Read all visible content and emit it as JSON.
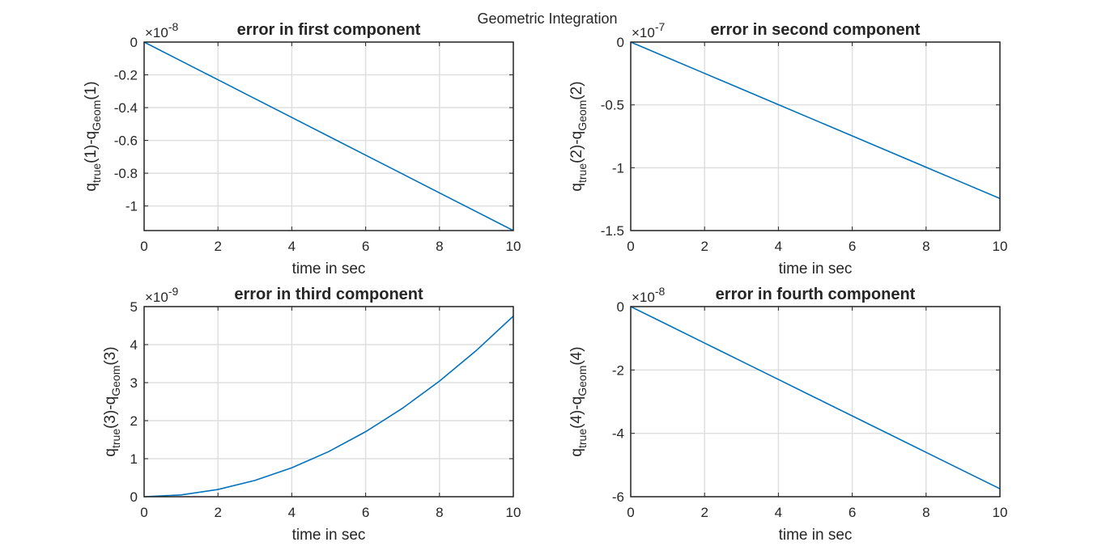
{
  "figure": {
    "suptitle": "Geometric Integration",
    "colors": {
      "line": "#0072BD",
      "axes": "#262626",
      "grid": "#dfdfdf"
    }
  },
  "chart_data": [
    {
      "type": "line",
      "title": "error in first component",
      "xlabel": "time in sec",
      "ylabel": {
        "base": "q",
        "sub1": "true",
        "mid": "(1)-q",
        "sub2": "Geom",
        "end": "(1)"
      },
      "exponent_label": {
        "times": "×10",
        "power": "-8"
      },
      "xlim": [
        0,
        10
      ],
      "ylim": [
        -1.15,
        0
      ],
      "xticks": [
        0,
        2,
        4,
        6,
        8,
        10
      ],
      "xtick_labels": [
        "0",
        "2",
        "4",
        "6",
        "8",
        "10"
      ],
      "yticks": [
        -1,
        -0.8,
        -0.6,
        -0.4,
        -0.2,
        0
      ],
      "ytick_labels": [
        "-1",
        "-0.8",
        "-0.6",
        "-0.4",
        "-0.2",
        "0"
      ],
      "grid": true,
      "series": [
        {
          "x": [
            0,
            1,
            2,
            3,
            4,
            5,
            6,
            7,
            8,
            9,
            10
          ],
          "y": [
            0,
            -0.115,
            -0.23,
            -0.345,
            -0.46,
            -0.575,
            -0.69,
            -0.805,
            -0.92,
            -1.035,
            -1.15
          ]
        }
      ]
    },
    {
      "type": "line",
      "title": "error in second component",
      "xlabel": "time in sec",
      "ylabel": {
        "base": "q",
        "sub1": "true",
        "mid": "(2)-q",
        "sub2": "Geom",
        "end": "(2)"
      },
      "exponent_label": {
        "times": "×10",
        "power": "-7"
      },
      "xlim": [
        0,
        10
      ],
      "ylim": [
        -1.5,
        0
      ],
      "xticks": [
        0,
        2,
        4,
        6,
        8,
        10
      ],
      "xtick_labels": [
        "0",
        "2",
        "4",
        "6",
        "8",
        "10"
      ],
      "yticks": [
        -1.5,
        -1,
        -0.5,
        0
      ],
      "ytick_labels": [
        "-1.5",
        "-1",
        "-0.5",
        "0"
      ],
      "grid": true,
      "series": [
        {
          "x": [
            0,
            1,
            2,
            3,
            4,
            5,
            6,
            7,
            8,
            9,
            10
          ],
          "y": [
            0,
            -0.1245,
            -0.249,
            -0.3735,
            -0.498,
            -0.6225,
            -0.747,
            -0.8715,
            -0.996,
            -1.1205,
            -1.245
          ]
        }
      ]
    },
    {
      "type": "line",
      "title": "error in third component",
      "xlabel": "time in sec",
      "ylabel": {
        "base": "q",
        "sub1": "true",
        "mid": "(3)-q",
        "sub2": "Geom",
        "end": "(3)"
      },
      "exponent_label": {
        "times": "×10",
        "power": "-9"
      },
      "xlim": [
        0,
        10
      ],
      "ylim": [
        0,
        5
      ],
      "xticks": [
        0,
        2,
        4,
        6,
        8,
        10
      ],
      "xtick_labels": [
        "0",
        "2",
        "4",
        "6",
        "8",
        "10"
      ],
      "yticks": [
        0,
        1,
        2,
        3,
        4,
        5
      ],
      "ytick_labels": [
        "0",
        "1",
        "2",
        "3",
        "4",
        "5"
      ],
      "grid": true,
      "series": [
        {
          "x": [
            0,
            1,
            2,
            3,
            4,
            5,
            6,
            7,
            8,
            9,
            10
          ],
          "y": [
            0,
            0.0475,
            0.19,
            0.4275,
            0.76,
            1.1875,
            1.71,
            2.3275,
            3.04,
            3.8475,
            4.75
          ]
        }
      ]
    },
    {
      "type": "line",
      "title": "error in fourth component",
      "xlabel": "time in sec",
      "ylabel": {
        "base": "q",
        "sub1": "true",
        "mid": "(4)-q",
        "sub2": "Geom",
        "end": "(4)"
      },
      "exponent_label": {
        "times": "×10",
        "power": "-8"
      },
      "xlim": [
        0,
        10
      ],
      "ylim": [
        -6,
        0
      ],
      "xticks": [
        0,
        2,
        4,
        6,
        8,
        10
      ],
      "xtick_labels": [
        "0",
        "2",
        "4",
        "6",
        "8",
        "10"
      ],
      "yticks": [
        -6,
        -4,
        -2,
        0
      ],
      "ytick_labels": [
        "-6",
        "-4",
        "-2",
        "0"
      ],
      "grid": true,
      "series": [
        {
          "x": [
            0,
            1,
            2,
            3,
            4,
            5,
            6,
            7,
            8,
            9,
            10
          ],
          "y": [
            0,
            -0.575,
            -1.15,
            -1.725,
            -2.3,
            -2.875,
            -3.45,
            -4.025,
            -4.6,
            -5.175,
            -5.75
          ]
        }
      ]
    }
  ]
}
